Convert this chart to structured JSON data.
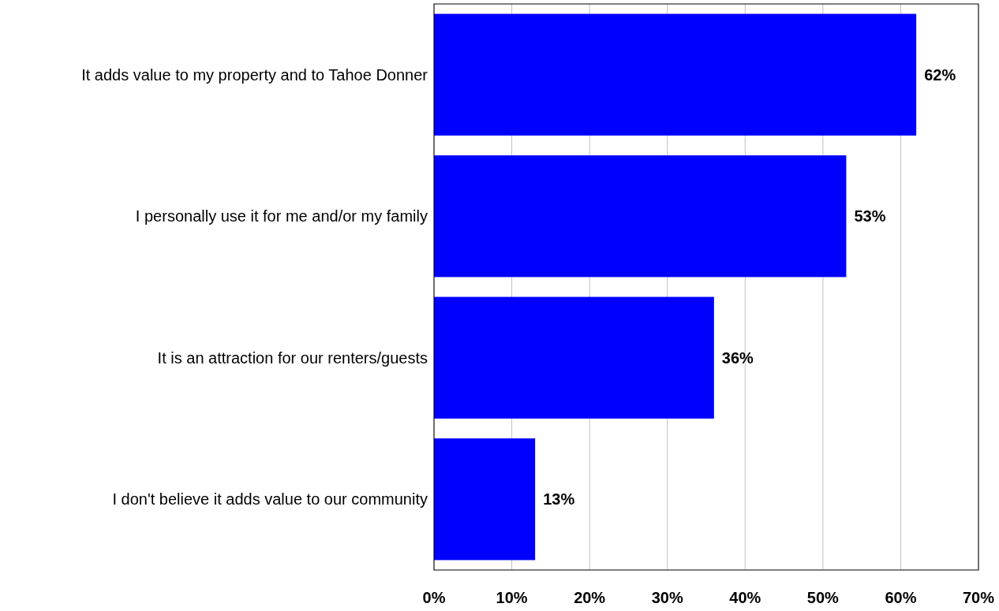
{
  "chart_data": {
    "type": "bar",
    "orientation": "horizontal",
    "categories": [
      "It adds value to my property and to Tahoe Donner",
      "I personally use it for me and/or my family",
      "It is an attraction for our renters/guests",
      "I don't believe it adds value to our community"
    ],
    "values": [
      62,
      53,
      36,
      13
    ],
    "value_labels": [
      "62%",
      "53%",
      "36%",
      "13%"
    ],
    "color": "#0000ff",
    "xlim": [
      0,
      70
    ],
    "xticks": [
      {
        "value": 0,
        "label": "0%"
      },
      {
        "value": 10,
        "label": "10%"
      },
      {
        "value": 20,
        "label": "20%"
      },
      {
        "value": 30,
        "label": "30%"
      },
      {
        "value": 40,
        "label": "40%"
      },
      {
        "value": 50,
        "label": "50%"
      },
      {
        "value": 60,
        "label": "60%"
      },
      {
        "value": 70,
        "label": "70%"
      }
    ],
    "grid": "x"
  }
}
